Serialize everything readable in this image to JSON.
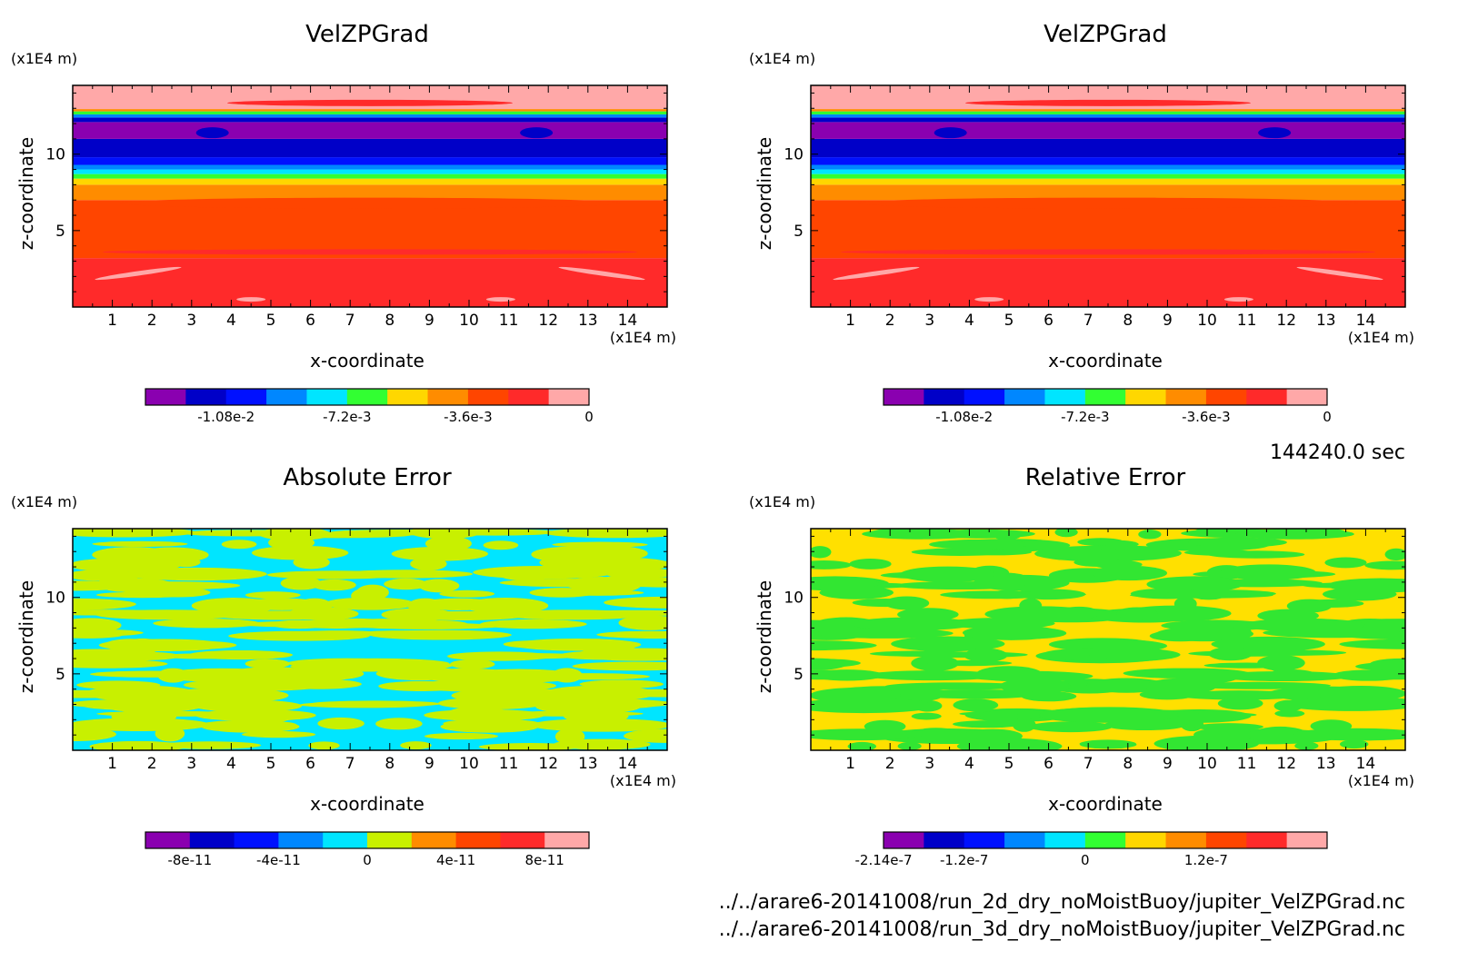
{
  "time_label": "144240.0 sec",
  "file_paths": [
    "../../arare6-20141008/run_2d_dry_noMoistBuoy/jupiter_VelZPGrad.nc",
    "../../arare6-20141008/run_3d_dry_noMoistBuoy/jupiter_VelZPGrad.nc"
  ],
  "chart_data": [
    {
      "type": "heatmap",
      "title": "VelZPGrad",
      "xlabel": "x-coordinate",
      "ylabel": "z-coordinate",
      "x_unit": "(x1E4 m)",
      "y_unit": "(x1E4 m)",
      "xlim": [
        0,
        15
      ],
      "ylim": [
        0,
        14.5
      ],
      "x_ticks": [
        "1",
        "2",
        "3",
        "4",
        "5",
        "6",
        "7",
        "8",
        "9",
        "10",
        "11",
        "12",
        "13",
        "14"
      ],
      "y_ticks": [
        "5",
        "10"
      ],
      "bands": [
        {
          "z0": 0.0,
          "z1": 3.2,
          "color": "#ff2a2a"
        },
        {
          "z0": 3.2,
          "z1": 7.0,
          "color": "#ff4500"
        },
        {
          "z0": 7.0,
          "z1": 8.0,
          "color": "#ff8c00"
        },
        {
          "z0": 8.0,
          "z1": 8.4,
          "color": "#ffd700"
        },
        {
          "z0": 8.4,
          "z1": 8.7,
          "color": "#32ff32"
        },
        {
          "z0": 8.7,
          "z1": 9.0,
          "color": "#00e5ff"
        },
        {
          "z0": 9.0,
          "z1": 9.3,
          "color": "#0087ff"
        },
        {
          "z0": 9.3,
          "z1": 9.8,
          "color": "#0010ff"
        },
        {
          "z0": 9.8,
          "z1": 11.0,
          "color": "#0000c8"
        },
        {
          "z0": 11.0,
          "z1": 12.1,
          "color": "#8a00b0"
        },
        {
          "z0": 12.1,
          "z1": 12.4,
          "color": "#0000c8"
        },
        {
          "z0": 12.4,
          "z1": 12.6,
          "color": "#0087ff"
        },
        {
          "z0": 12.6,
          "z1": 12.8,
          "color": "#32ff32"
        },
        {
          "z0": 12.8,
          "z1": 12.95,
          "color": "#ff8c00"
        },
        {
          "z0": 12.95,
          "z1": 14.5,
          "color": "#ffa8a8"
        }
      ],
      "colorbar": {
        "colors": [
          "#8a00b0",
          "#0000c8",
          "#0010ff",
          "#0087ff",
          "#00e5ff",
          "#32ff32",
          "#ffd700",
          "#ff8c00",
          "#ff4500",
          "#ff2a2a",
          "#ffa8a8"
        ],
        "labels": [
          "-1.08e-2",
          "-7.2e-3",
          "-3.6e-3",
          "0"
        ],
        "label_index": [
          2,
          5,
          8,
          11
        ]
      }
    },
    {
      "type": "heatmap",
      "title": "VelZPGrad",
      "xlabel": "x-coordinate",
      "ylabel": "z-coordinate",
      "x_unit": "(x1E4 m)",
      "y_unit": "(x1E4 m)",
      "xlim": [
        0,
        15
      ],
      "ylim": [
        0,
        14.5
      ],
      "x_ticks": [
        "1",
        "2",
        "3",
        "4",
        "5",
        "6",
        "7",
        "8",
        "9",
        "10",
        "11",
        "12",
        "13",
        "14"
      ],
      "y_ticks": [
        "5",
        "10"
      ],
      "bands": [
        {
          "z0": 0.0,
          "z1": 3.2,
          "color": "#ff2a2a"
        },
        {
          "z0": 3.2,
          "z1": 7.0,
          "color": "#ff4500"
        },
        {
          "z0": 7.0,
          "z1": 8.0,
          "color": "#ff8c00"
        },
        {
          "z0": 8.0,
          "z1": 8.4,
          "color": "#ffd700"
        },
        {
          "z0": 8.4,
          "z1": 8.7,
          "color": "#32ff32"
        },
        {
          "z0": 8.7,
          "z1": 9.0,
          "color": "#00e5ff"
        },
        {
          "z0": 9.0,
          "z1": 9.3,
          "color": "#0087ff"
        },
        {
          "z0": 9.3,
          "z1": 9.8,
          "color": "#0010ff"
        },
        {
          "z0": 9.8,
          "z1": 11.0,
          "color": "#0000c8"
        },
        {
          "z0": 11.0,
          "z1": 12.1,
          "color": "#8a00b0"
        },
        {
          "z0": 12.1,
          "z1": 12.4,
          "color": "#0000c8"
        },
        {
          "z0": 12.4,
          "z1": 12.6,
          "color": "#0087ff"
        },
        {
          "z0": 12.6,
          "z1": 12.8,
          "color": "#32ff32"
        },
        {
          "z0": 12.8,
          "z1": 12.95,
          "color": "#ff8c00"
        },
        {
          "z0": 12.95,
          "z1": 14.5,
          "color": "#ffa8a8"
        }
      ],
      "colorbar": {
        "colors": [
          "#8a00b0",
          "#0000c8",
          "#0010ff",
          "#0087ff",
          "#00e5ff",
          "#32ff32",
          "#ffd700",
          "#ff8c00",
          "#ff4500",
          "#ff2a2a",
          "#ffa8a8"
        ],
        "labels": [
          "-1.08e-2",
          "-7.2e-3",
          "-3.6e-3",
          "0"
        ],
        "label_index": [
          2,
          5,
          8,
          11
        ]
      }
    },
    {
      "type": "heatmap",
      "title": "Absolute Error",
      "xlabel": "x-coordinate",
      "ylabel": "z-coordinate",
      "x_unit": "(x1E4 m)",
      "y_unit": "(x1E4 m)",
      "xlim": [
        0,
        15
      ],
      "ylim": [
        0,
        14.5
      ],
      "x_ticks": [
        "1",
        "2",
        "3",
        "4",
        "5",
        "6",
        "7",
        "8",
        "9",
        "10",
        "11",
        "12",
        "13",
        "14"
      ],
      "y_ticks": [
        "5",
        "10"
      ],
      "background": "#00e5ff",
      "pattern_color": "#c8f000",
      "colorbar": {
        "colors": [
          "#8a00b0",
          "#0000c8",
          "#0010ff",
          "#0087ff",
          "#00e5ff",
          "#c8f000",
          "#ff8c00",
          "#ff4500",
          "#ff2a2a",
          "#ffa8a8"
        ],
        "labels": [
          "-8e-11",
          "-4e-11",
          "0",
          "4e-11",
          "8e-11"
        ],
        "label_index": [
          1,
          3,
          5,
          7,
          9
        ]
      }
    },
    {
      "type": "heatmap",
      "title": "Relative Error",
      "xlabel": "x-coordinate",
      "ylabel": "z-coordinate",
      "x_unit": "(x1E4 m)",
      "y_unit": "(x1E4 m)",
      "xlim": [
        0,
        15
      ],
      "ylim": [
        0,
        14.5
      ],
      "x_ticks": [
        "1",
        "2",
        "3",
        "4",
        "5",
        "6",
        "7",
        "8",
        "9",
        "10",
        "11",
        "12",
        "13",
        "14"
      ],
      "y_ticks": [
        "5",
        "10"
      ],
      "background": "#ffe000",
      "pattern_color": "#32e632",
      "colorbar": {
        "colors": [
          "#8a00b0",
          "#0000c8",
          "#0010ff",
          "#0087ff",
          "#00e5ff",
          "#32ff32",
          "#ffd700",
          "#ff8c00",
          "#ff4500",
          "#ff2a2a",
          "#ffa8a8"
        ],
        "labels": [
          "-2.14e-7",
          "-1.2e-7",
          "0",
          "1.2e-7"
        ],
        "label_index": [
          0,
          2,
          5,
          8
        ]
      }
    }
  ]
}
